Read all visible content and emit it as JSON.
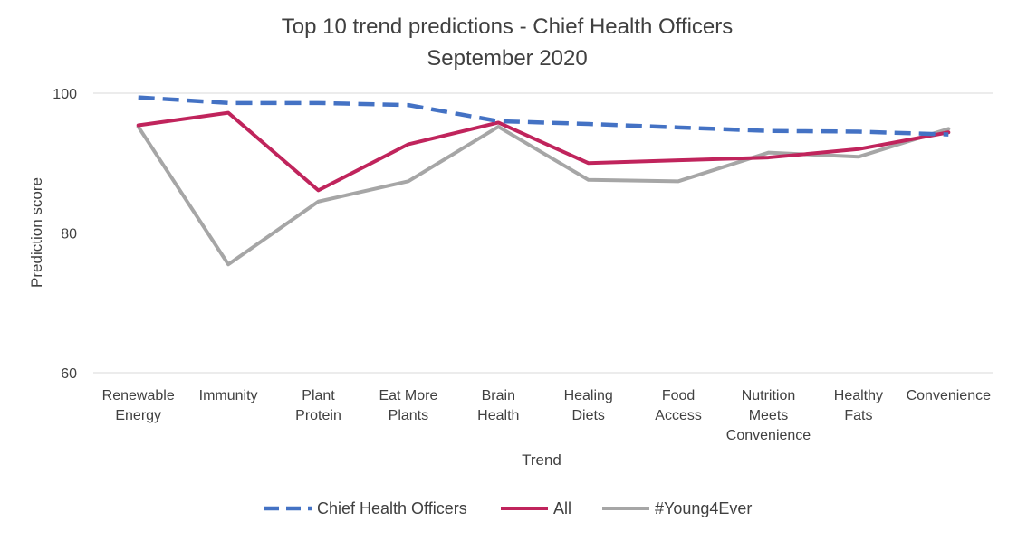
{
  "chart_data": {
    "type": "line",
    "title": "Top 10 trend predictions - Chief Health Officers",
    "subtitle": "September 2020",
    "xlabel": "Trend",
    "ylabel": "Prediction score",
    "categories": [
      [
        "Renewable",
        "Energy"
      ],
      [
        "Immunity"
      ],
      [
        "Plant",
        "Protein"
      ],
      [
        "Eat More",
        "Plants"
      ],
      [
        "Brain",
        "Health"
      ],
      [
        "Healing",
        "Diets"
      ],
      [
        "Food",
        "Access"
      ],
      [
        "Nutrition",
        "Meets",
        "Convenience"
      ],
      [
        "Healthy",
        "Fats"
      ],
      [
        "Convenience"
      ]
    ],
    "y_ticks": [
      "60",
      "80",
      "100"
    ],
    "ylim": [
      60,
      100
    ],
    "grid": true,
    "legend_position": "bottom",
    "series": [
      {
        "name": "Chief Health Officers",
        "color": "#4472C4",
        "dashed": true,
        "values": [
          99.4,
          98.6,
          98.6,
          98.3,
          96.0,
          95.6,
          95.1,
          94.6,
          94.5,
          94.1
        ]
      },
      {
        "name": "All",
        "color": "#C0245C",
        "dashed": false,
        "values": [
          95.4,
          97.2,
          86.1,
          92.7,
          95.8,
          90.0,
          90.4,
          90.8,
          92.0,
          94.4
        ]
      },
      {
        "name": "#Young4Ever",
        "color": "#A6A6A6",
        "dashed": false,
        "values": [
          95.2,
          75.5,
          84.5,
          87.4,
          95.2,
          87.6,
          87.4,
          91.5,
          90.9,
          94.9
        ]
      }
    ]
  }
}
